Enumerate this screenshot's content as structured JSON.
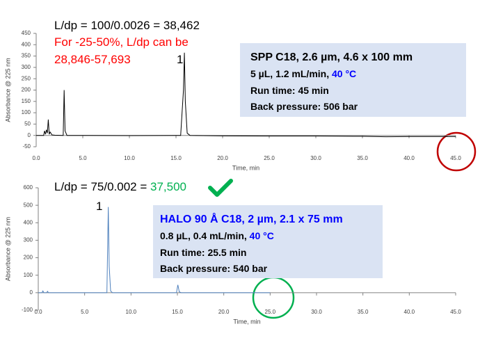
{
  "chart_data": [
    {
      "type": "line",
      "xlabel": "Time, min",
      "ylabel": "Absorbance @ 225 nm",
      "color": "#000000",
      "x": [
        0,
        0.8,
        0.9,
        1.0,
        1.1,
        1.2,
        1.3,
        1.4,
        1.5,
        1.7,
        2.0,
        2.9,
        3.0,
        3.1,
        3.3,
        5,
        10,
        15.5,
        15.8,
        15.9,
        16.0,
        16.2,
        16.5,
        20,
        25,
        30,
        35,
        37.5,
        40,
        45
      ],
      "values": [
        0,
        0,
        20,
        5,
        25,
        10,
        70,
        5,
        15,
        2,
        1,
        0,
        200,
        20,
        0,
        0,
        -1,
        0,
        200,
        365,
        150,
        10,
        0,
        -2,
        -3,
        -3,
        -4,
        -6,
        -5,
        -5
      ],
      "xlim": [
        0,
        45
      ],
      "xticks": [
        {
          "value": 0,
          "label": "0.0"
        },
        {
          "value": 5,
          "label": "5.0"
        },
        {
          "value": 10,
          "label": "10.0"
        },
        {
          "value": 15,
          "label": "15.0"
        },
        {
          "value": 20,
          "label": "20.0"
        },
        {
          "value": 25,
          "label": "25.0"
        },
        {
          "value": 30,
          "label": "30.0"
        },
        {
          "value": 35,
          "label": "35.0"
        },
        {
          "value": 40,
          "label": "40.0"
        },
        {
          "value": 45,
          "label": "45.0"
        }
      ],
      "ylim": [
        -50,
        450
      ],
      "yticks": [
        -50,
        0,
        50,
        100,
        150,
        200,
        250,
        300,
        350,
        400,
        450
      ],
      "annotations": [
        {
          "parts": [
            {
              "text": "L/dp = 100/0.0026 = 38,462",
              "color": "#000000"
            }
          ]
        },
        {
          "parts": [
            {
              "text": "For -25-50%, L/dp can be",
              "color": "#ff0000"
            }
          ]
        },
        {
          "parts": [
            {
              "text": "28,846-57,693",
              "color": "#ff0000"
            }
          ]
        },
        {
          "parts": [
            {
              "text": "1",
              "color": "#000000"
            }
          ]
        }
      ],
      "info_box": {
        "lines": [
          {
            "parts": [
              {
                "text": "SPP C18,  2.6 µm, 4.6 x 100 mm",
                "color": "#000000"
              }
            ]
          },
          {
            "parts": [
              {
                "text": "5 µL, 1.2 mL/min, ",
                "color": "#000000"
              },
              {
                "text": "40 °C",
                "color": "#0000ff"
              }
            ]
          },
          {
            "parts": [
              {
                "text": "Run time: 45 min",
                "color": "#000000"
              }
            ]
          },
          {
            "parts": [
              {
                "text": "Back pressure:  506 bar",
                "color": "#000000"
              }
            ]
          }
        ]
      }
    },
    {
      "type": "line",
      "xlabel": "Time, min",
      "ylabel": "Absorbance @ 225 nm",
      "color": "#4f81bd",
      "x": [
        0,
        0.4,
        0.5,
        0.6,
        0.9,
        1.0,
        1.1,
        2,
        7.4,
        7.55,
        7.65,
        7.8,
        8,
        10,
        14.9,
        15.05,
        15.2,
        15.4,
        20,
        25
      ],
      "values": [
        0,
        0,
        10,
        0,
        0,
        8,
        0,
        0,
        0,
        490,
        150,
        10,
        0,
        0,
        0,
        45,
        5,
        0,
        0,
        0
      ],
      "xlim": [
        0,
        45
      ],
      "xticks": [
        {
          "value": 0,
          "label": "0.0"
        },
        {
          "value": 5,
          "label": "5.0"
        },
        {
          "value": 10,
          "label": "10.0"
        },
        {
          "value": 15,
          "label": "15.0"
        },
        {
          "value": 20,
          "label": "20.0"
        },
        {
          "value": 25,
          "label": "25.0"
        },
        {
          "value": 30,
          "label": "30.0"
        },
        {
          "value": 35,
          "label": "35.0"
        },
        {
          "value": 40,
          "label": "40.0"
        },
        {
          "value": 45,
          "label": "45.0"
        }
      ],
      "ylim": [
        -100,
        600
      ],
      "yticks": [
        -100,
        0,
        100,
        200,
        300,
        400,
        500,
        600
      ],
      "annotations": [
        {
          "parts": [
            {
              "text": "L/dp = 75/0.002 = ",
              "color": "#000000"
            },
            {
              "text": "37,500",
              "color": "#00b050"
            }
          ]
        },
        {
          "parts": [
            {
              "text": "1",
              "color": "#000000"
            }
          ]
        }
      ],
      "info_box": {
        "lines": [
          {
            "parts": [
              {
                "text": "HALO 90 Å C18, 2 µm, 2.1 x 75 mm",
                "color": "#0000ff"
              }
            ]
          },
          {
            "parts": [
              {
                "text": "0.8 µL, 0.4 mL/min, ",
                "color": "#000000"
              },
              {
                "text": "40 °C",
                "color": "#0000ff"
              }
            ]
          },
          {
            "parts": [
              {
                "text": "Run time: 25.5 min",
                "color": "#000000"
              }
            ]
          },
          {
            "parts": [
              {
                "text": "Back pressure:  540 bar",
                "color": "#000000"
              }
            ]
          }
        ]
      }
    }
  ]
}
